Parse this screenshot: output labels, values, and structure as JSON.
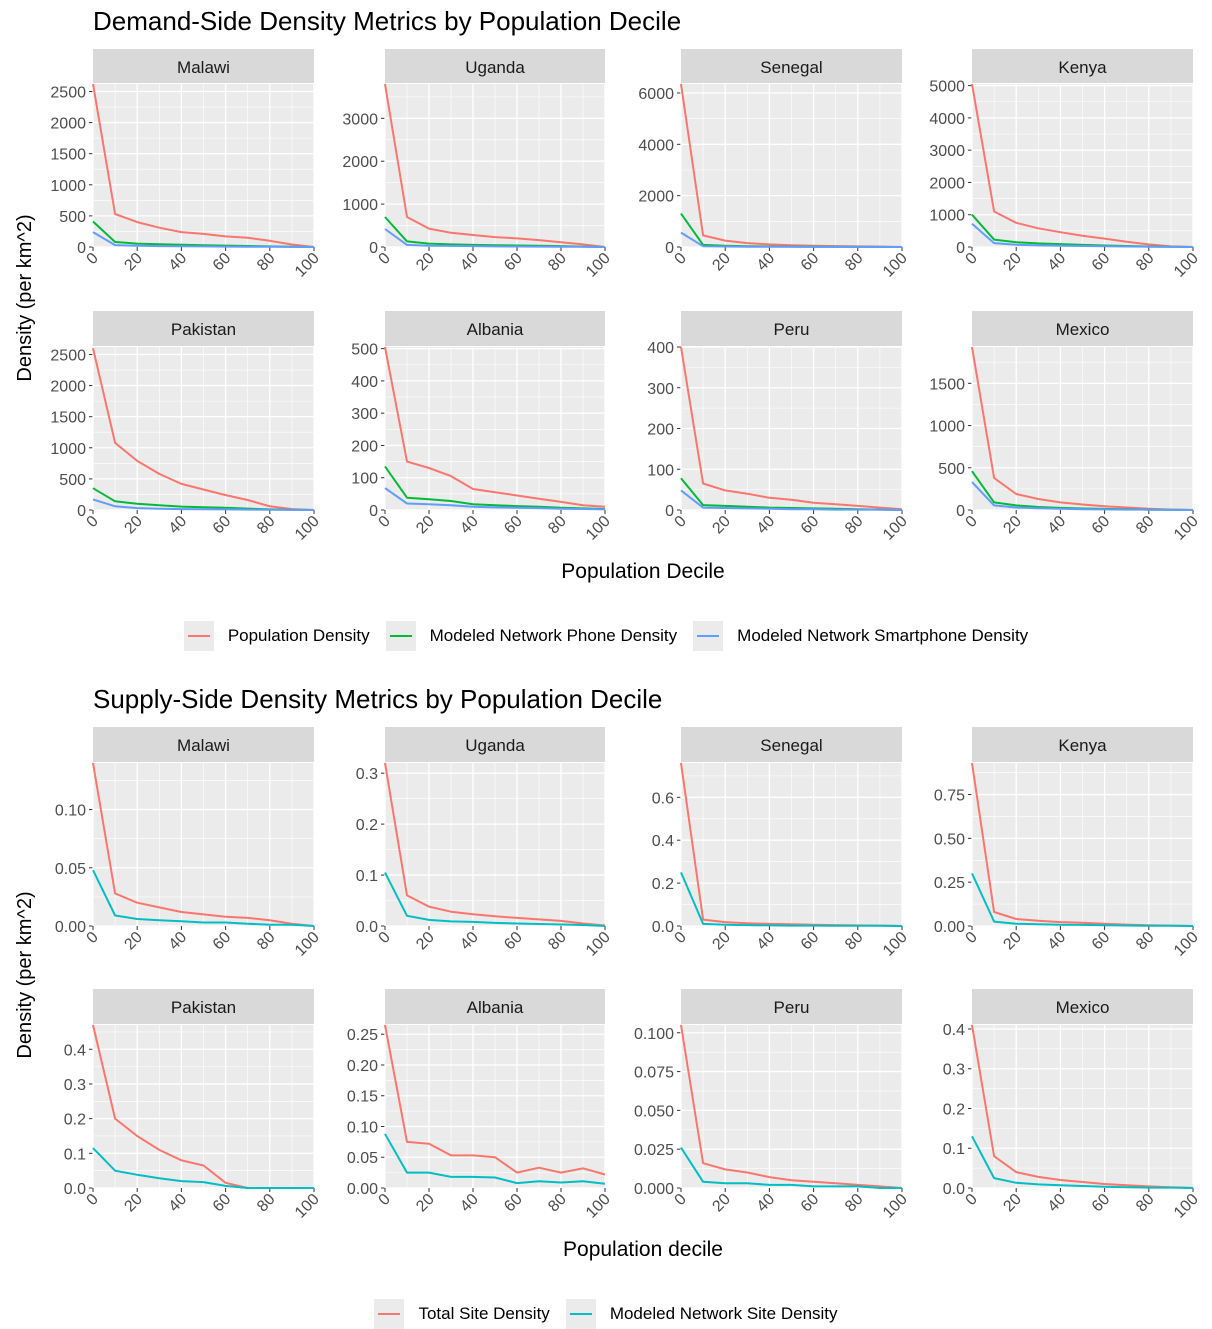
{
  "chart_data": [
    {
      "type": "line",
      "title": "Demand-Side Density Metrics by Population Decile",
      "xlabel": "Population Decile",
      "ylabel": "Density (per km^2)",
      "x": [
        0,
        10,
        20,
        30,
        40,
        50,
        60,
        70,
        80,
        90,
        100
      ],
      "x_ticks": [
        "0",
        "20",
        "40",
        "60",
        "80",
        "100"
      ],
      "legend_position": "bottom",
      "legend": [
        {
          "name": "Population Density",
          "color": "#F8766D"
        },
        {
          "name": "Modeled Network Phone Density",
          "color": "#00BA38"
        },
        {
          "name": "Modeled Network Smartphone Density",
          "color": "#619CFF"
        }
      ],
      "panels": [
        {
          "name": "Malawi",
          "ylim": [
            0,
            2620
          ],
          "yticks": [
            "0",
            "500",
            "1000",
            "1500",
            "2000",
            "2500"
          ],
          "series": [
            [
              2620,
              530,
              400,
              310,
              240,
              210,
              170,
              150,
              100,
              40,
              0
            ],
            [
              410,
              80,
              55,
              45,
              35,
              28,
              22,
              16,
              10,
              5,
              0
            ],
            [
              240,
              30,
              20,
              15,
              12,
              9,
              7,
              5,
              3,
              2,
              0
            ]
          ]
        },
        {
          "name": "Uganda",
          "ylim": [
            0,
            3800
          ],
          "yticks": [
            "0",
            "1000",
            "2000",
            "3000"
          ],
          "series": [
            [
              3800,
              700,
              430,
              330,
              280,
              230,
              200,
              160,
              110,
              60,
              0
            ],
            [
              700,
              130,
              80,
              60,
              50,
              40,
              35,
              28,
              20,
              10,
              0
            ],
            [
              420,
              50,
              30,
              25,
              20,
              15,
              12,
              10,
              7,
              4,
              0
            ]
          ]
        },
        {
          "name": "Senegal",
          "ylim": [
            0,
            6350
          ],
          "yticks": [
            "0",
            "2000",
            "4000",
            "6000"
          ],
          "series": [
            [
              6350,
              450,
              250,
              150,
              100,
              70,
              50,
              35,
              25,
              15,
              0
            ],
            [
              1300,
              80,
              45,
              30,
              20,
              15,
              10,
              8,
              5,
              3,
              0
            ],
            [
              560,
              30,
              18,
              12,
              8,
              6,
              4,
              3,
              2,
              1,
              0
            ]
          ]
        },
        {
          "name": "Kenya",
          "ylim": [
            0,
            5050
          ],
          "yticks": [
            "0",
            "1000",
            "2000",
            "3000",
            "4000",
            "5000"
          ],
          "series": [
            [
              5050,
              1100,
              750,
              580,
              460,
              350,
              260,
              160,
              80,
              20,
              0
            ],
            [
              1000,
              230,
              150,
              110,
              90,
              65,
              48,
              30,
              15,
              5,
              0
            ],
            [
              720,
              120,
              70,
              50,
              40,
              30,
              22,
              15,
              8,
              3,
              0
            ]
          ]
        },
        {
          "name": "Pakistan",
          "ylim": [
            0,
            2620
          ],
          "yticks": [
            "0",
            "500",
            "1000",
            "1500",
            "2000",
            "2500"
          ],
          "series": [
            [
              2600,
              1080,
              790,
              580,
              420,
              330,
              240,
              160,
              60,
              15,
              0
            ],
            [
              350,
              140,
              100,
              75,
              55,
              45,
              35,
              22,
              10,
              3,
              0
            ],
            [
              170,
              60,
              30,
              20,
              15,
              12,
              9,
              6,
              3,
              1,
              0
            ]
          ]
        },
        {
          "name": "Albania",
          "ylim": [
            0,
            505
          ],
          "yticks": [
            "0",
            "100",
            "200",
            "300",
            "400",
            "500"
          ],
          "series": [
            [
              505,
              150,
              130,
              105,
              65,
              55,
              45,
              35,
              25,
              15,
              10
            ],
            [
              135,
              38,
              33,
              28,
              18,
              15,
              12,
              10,
              7,
              5,
              3
            ],
            [
              68,
              20,
              18,
              15,
              10,
              8,
              7,
              6,
              4,
              3,
              2
            ]
          ]
        },
        {
          "name": "Peru",
          "ylim": [
            0,
            400
          ],
          "yticks": [
            "0",
            "100",
            "200",
            "300",
            "400"
          ],
          "series": [
            [
              400,
              65,
              48,
              40,
              30,
              25,
              18,
              14,
              10,
              6,
              2
            ],
            [
              78,
              12,
              10,
              8,
              6,
              5,
              4,
              3,
              2,
              1,
              0
            ],
            [
              48,
              6,
              5,
              4,
              3,
              2,
              2,
              1,
              1,
              1,
              0
            ]
          ]
        },
        {
          "name": "Mexico",
          "ylim": [
            0,
            1930
          ],
          "yticks": [
            "0",
            "500",
            "1000",
            "1500"
          ],
          "series": [
            [
              1930,
              380,
              190,
              130,
              90,
              65,
              45,
              30,
              15,
              5,
              0
            ],
            [
              460,
              90,
              55,
              35,
              25,
              18,
              13,
              9,
              5,
              2,
              0
            ],
            [
              330,
              55,
              30,
              20,
              15,
              10,
              7,
              5,
              3,
              1,
              0
            ]
          ]
        }
      ]
    },
    {
      "type": "line",
      "title": "Supply-Side Density Metrics by Population Decile",
      "xlabel": "Population decile",
      "ylabel": "Density (per km^2)",
      "x": [
        0,
        10,
        20,
        30,
        40,
        50,
        60,
        70,
        80,
        90,
        100
      ],
      "x_ticks": [
        "0",
        "20",
        "40",
        "60",
        "80",
        "100"
      ],
      "legend_position": "bottom",
      "legend": [
        {
          "name": "Total Site Density",
          "color": "#F8766D"
        },
        {
          "name": "Modeled Network Site Density",
          "color": "#00BFC4"
        }
      ],
      "panels": [
        {
          "name": "Malawi",
          "ylim": [
            0,
            0.14
          ],
          "yticks": [
            "0.00",
            "0.05",
            "0.10"
          ],
          "series": [
            [
              0.14,
              0.028,
              0.02,
              0.016,
              0.012,
              0.01,
              0.008,
              0.007,
              0.005,
              0.002,
              0.0
            ],
            [
              0.048,
              0.009,
              0.006,
              0.005,
              0.004,
              0.003,
              0.003,
              0.002,
              0.001,
              0.001,
              0.0
            ]
          ]
        },
        {
          "name": "Uganda",
          "ylim": [
            0,
            0.32
          ],
          "yticks": [
            "0.0",
            "0.1",
            "0.2",
            "0.3"
          ],
          "series": [
            [
              0.32,
              0.06,
              0.038,
              0.028,
              0.023,
              0.019,
              0.016,
              0.013,
              0.01,
              0.005,
              0.001
            ],
            [
              0.105,
              0.02,
              0.012,
              0.009,
              0.008,
              0.006,
              0.005,
              0.004,
              0.003,
              0.002,
              0.0
            ]
          ]
        },
        {
          "name": "Senegal",
          "ylim": [
            0,
            0.76
          ],
          "yticks": [
            "0.0",
            "0.2",
            "0.4",
            "0.6"
          ],
          "series": [
            [
              0.76,
              0.03,
              0.018,
              0.013,
              0.01,
              0.008,
              0.006,
              0.004,
              0.003,
              0.002,
              0.0
            ],
            [
              0.25,
              0.01,
              0.006,
              0.004,
              0.003,
              0.002,
              0.002,
              0.001,
              0.001,
              0.001,
              0.0
            ]
          ]
        },
        {
          "name": "Kenya",
          "ylim": [
            0,
            0.93
          ],
          "yticks": [
            "0.00",
            "0.25",
            "0.50",
            "0.75"
          ],
          "series": [
            [
              0.93,
              0.08,
              0.04,
              0.03,
              0.022,
              0.018,
              0.013,
              0.008,
              0.004,
              0.002,
              0.0
            ],
            [
              0.3,
              0.025,
              0.013,
              0.01,
              0.007,
              0.006,
              0.004,
              0.003,
              0.001,
              0.001,
              0.0
            ]
          ]
        },
        {
          "name": "Pakistan",
          "ylim": [
            0,
            0.47
          ],
          "yticks": [
            "0.0",
            "0.1",
            "0.2",
            "0.3",
            "0.4"
          ],
          "series": [
            [
              0.47,
              0.2,
              0.15,
              0.11,
              0.08,
              0.065,
              0.015,
              0.0,
              0.0,
              0.0,
              0.0
            ],
            [
              0.115,
              0.05,
              0.038,
              0.028,
              0.02,
              0.017,
              0.006,
              0.0,
              0.0,
              0.0,
              0.0
            ]
          ]
        },
        {
          "name": "Albania",
          "ylim": [
            0,
            0.265
          ],
          "yticks": [
            "0.00",
            "0.05",
            "0.10",
            "0.15",
            "0.20",
            "0.25"
          ],
          "series": [
            [
              0.265,
              0.075,
              0.072,
              0.053,
              0.053,
              0.05,
              0.025,
              0.033,
              0.025,
              0.032,
              0.022
            ],
            [
              0.088,
              0.025,
              0.025,
              0.018,
              0.018,
              0.017,
              0.008,
              0.011,
              0.009,
              0.011,
              0.007
            ]
          ]
        },
        {
          "name": "Peru",
          "ylim": [
            0,
            0.105
          ],
          "yticks": [
            "0.000",
            "0.025",
            "0.050",
            "0.075",
            "0.100"
          ],
          "series": [
            [
              0.105,
              0.016,
              0.012,
              0.01,
              0.007,
              0.005,
              0.004,
              0.003,
              0.002,
              0.001,
              0.0
            ],
            [
              0.026,
              0.004,
              0.003,
              0.003,
              0.002,
              0.002,
              0.001,
              0.001,
              0.001,
              0.0,
              0.0
            ]
          ]
        },
        {
          "name": "Mexico",
          "ylim": [
            0,
            0.41
          ],
          "yticks": [
            "0.0",
            "0.1",
            "0.2",
            "0.3",
            "0.4"
          ],
          "series": [
            [
              0.41,
              0.08,
              0.04,
              0.028,
              0.02,
              0.015,
              0.01,
              0.007,
              0.004,
              0.002,
              0.0
            ],
            [
              0.13,
              0.025,
              0.013,
              0.009,
              0.007,
              0.005,
              0.003,
              0.002,
              0.001,
              0.001,
              0.0
            ]
          ]
        }
      ]
    }
  ]
}
